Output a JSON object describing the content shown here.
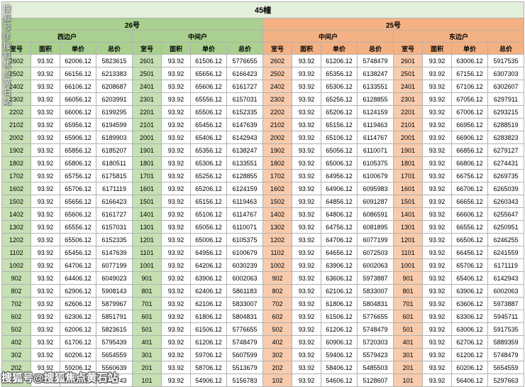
{
  "chart_data": {
    "type": "table",
    "title": "45幢",
    "groups": [
      {
        "building": "26号",
        "units": [
          "西边户",
          "中间户"
        ]
      },
      {
        "building": "25号",
        "units": [
          "中间户",
          "东边户"
        ]
      }
    ],
    "column_headers": [
      "室号",
      "面积",
      "单价",
      "总价"
    ],
    "rows": [
      [
        "2602",
        "93.92",
        "62006.12",
        "5823615",
        "2601",
        "93.92",
        "61506.12",
        "5776655",
        "2602",
        "93.92",
        "61206.12",
        "5748479",
        "2601",
        "93.92",
        "63006.12",
        "5917535"
      ],
      [
        "2502",
        "93.92",
        "66156.12",
        "6213383",
        "2501",
        "93.92",
        "65656.12",
        "6166423",
        "2502",
        "93.92",
        "65356.12",
        "6138247",
        "2501",
        "93.92",
        "67156.12",
        "6307303"
      ],
      [
        "2402",
        "93.92",
        "66106.12",
        "6208687",
        "2401",
        "93.92",
        "65606.12",
        "6161727",
        "2402",
        "93.92",
        "65306.12",
        "6133551",
        "2401",
        "93.92",
        "67106.12",
        "6302607"
      ],
      [
        "2302",
        "93.92",
        "66056.12",
        "6203991",
        "2301",
        "93.92",
        "65556.12",
        "6157031",
        "2302",
        "93.92",
        "65256.12",
        "6128855",
        "2301",
        "93.92",
        "67056.12",
        "6297911"
      ],
      [
        "2202",
        "93.92",
        "66006.12",
        "6199295",
        "2201",
        "93.92",
        "65506.12",
        "6152335",
        "2202",
        "93.92",
        "65206.12",
        "6124159",
        "2201",
        "93.92",
        "67006.12",
        "6293215"
      ],
      [
        "2102",
        "93.92",
        "65956.12",
        "6194599",
        "2101",
        "93.92",
        "65456.12",
        "6147639",
        "2102",
        "93.92",
        "65156.12",
        "6119463",
        "2101",
        "93.92",
        "66956.12",
        "6288519"
      ],
      [
        "2002",
        "93.92",
        "65906.12",
        "6189903",
        "2001",
        "93.92",
        "65406.12",
        "6142943",
        "2002",
        "93.92",
        "65106.12",
        "6114767",
        "2001",
        "93.92",
        "66906.12",
        "6283823"
      ],
      [
        "1902",
        "93.92",
        "65856.12",
        "6185207",
        "1901",
        "93.92",
        "65356.12",
        "6138247",
        "1902",
        "93.92",
        "65056.12",
        "6110071",
        "1901",
        "93.92",
        "66856.12",
        "6279127"
      ],
      [
        "1802",
        "93.92",
        "65806.12",
        "6180511",
        "1801",
        "93.92",
        "65306.12",
        "6133551",
        "1802",
        "93.92",
        "65006.12",
        "6105375",
        "1801",
        "93.92",
        "66806.12",
        "6274431"
      ],
      [
        "1702",
        "93.92",
        "65756.12",
        "6175815",
        "1701",
        "93.92",
        "65256.12",
        "6128855",
        "1702",
        "93.92",
        "64956.12",
        "6100679",
        "1701",
        "93.92",
        "66756.12",
        "6269735"
      ],
      [
        "1602",
        "93.92",
        "65706.12",
        "6171119",
        "1601",
        "93.92",
        "65206.12",
        "6124159",
        "1602",
        "93.92",
        "64906.12",
        "6095983",
        "1601",
        "93.92",
        "66706.12",
        "6265039"
      ],
      [
        "1502",
        "93.92",
        "65656.12",
        "6166423",
        "1501",
        "93.92",
        "65156.12",
        "6119463",
        "1502",
        "93.92",
        "64856.12",
        "6091287",
        "1501",
        "93.92",
        "66656.12",
        "6260343"
      ],
      [
        "1402",
        "93.92",
        "65606.12",
        "6161727",
        "1401",
        "93.92",
        "65106.12",
        "6114767",
        "1402",
        "93.92",
        "64806.12",
        "6086591",
        "1401",
        "93.92",
        "66606.12",
        "6255647"
      ],
      [
        "1302",
        "93.92",
        "65556.12",
        "6157031",
        "1301",
        "93.92",
        "65056.12",
        "6110071",
        "1302",
        "93.92",
        "64756.12",
        "6081895",
        "1301",
        "93.92",
        "66556.12",
        "6250951"
      ],
      [
        "1202",
        "93.92",
        "65506.12",
        "6152335",
        "1201",
        "93.92",
        "65006.12",
        "6105375",
        "1202",
        "93.92",
        "64706.12",
        "6077199",
        "1201",
        "93.92",
        "66506.12",
        "6246255"
      ],
      [
        "1102",
        "93.92",
        "65456.12",
        "6147639",
        "1101",
        "93.92",
        "64956.12",
        "6100679",
        "1102",
        "93.92",
        "64656.12",
        "6072503",
        "1101",
        "93.92",
        "66456.12",
        "6241559"
      ],
      [
        "1002",
        "93.92",
        "64706.12",
        "6077199",
        "1001",
        "93.92",
        "64206.12",
        "6030239",
        "1002",
        "93.92",
        "63906.12",
        "6002063",
        "1001",
        "93.92",
        "65706.12",
        "6171119"
      ],
      [
        "902",
        "93.92",
        "64406.12",
        "6049023",
        "901",
        "93.92",
        "63906.12",
        "6002063",
        "902",
        "93.92",
        "63606.12",
        "5973887",
        "901",
        "93.92",
        "65406.12",
        "6142943"
      ],
      [
        "802",
        "93.92",
        "62906.12",
        "5908143",
        "801",
        "93.92",
        "62406.12",
        "5861183",
        "802",
        "93.92",
        "62106.12",
        "5833007",
        "801",
        "93.92",
        "63906.12",
        "6002063"
      ],
      [
        "702",
        "93.92",
        "62606.12",
        "5879967",
        "701",
        "93.92",
        "62106.12",
        "5833007",
        "702",
        "93.92",
        "61806.12",
        "5804831",
        "701",
        "93.92",
        "63606.12",
        "5973887"
      ],
      [
        "602",
        "93.92",
        "62306.12",
        "5851791",
        "601",
        "93.92",
        "61806.12",
        "5804831",
        "602",
        "93.92",
        "61506.12",
        "5776655",
        "601",
        "93.92",
        "63306.12",
        "5945711"
      ],
      [
        "502",
        "93.92",
        "62006.12",
        "5823615",
        "501",
        "93.92",
        "61506.12",
        "5776655",
        "502",
        "93.92",
        "61206.12",
        "5748479",
        "501",
        "93.92",
        "63006.12",
        "5917535"
      ],
      [
        "402",
        "93.92",
        "61706.12",
        "5795439",
        "401",
        "93.92",
        "61206.12",
        "5748479",
        "402",
        "93.92",
        "60906.12",
        "5720303",
        "401",
        "93.92",
        "62706.12",
        "5889359"
      ],
      [
        "302",
        "93.92",
        "60206.12",
        "5654559",
        "301",
        "93.92",
        "59706.12",
        "5607599",
        "302",
        "93.92",
        "59406.12",
        "5579423",
        "301",
        "93.92",
        "61206.12",
        "5748479"
      ],
      [
        "202",
        "93.92",
        "59206.12",
        "5560639",
        "201",
        "93.92",
        "58706.12",
        "5513679",
        "202",
        "93.92",
        "58406.12",
        "5485503",
        "201",
        "93.92",
        "60206.12",
        "5654559"
      ],
      [
        "102",
        "93.92",
        "55406.12",
        "5203743",
        "101",
        "93.92",
        "54906.12",
        "5156783",
        "102",
        "93.92",
        "54606.12",
        "5128607",
        "101",
        "93.92",
        "56406.12",
        "5297663"
      ]
    ]
  },
  "watermark": {
    "vertical_text": "搜狐号@搜狐焦点黄石站",
    "bottom_text": "搜狐号@搜狐焦点黄石站"
  },
  "colors": {
    "title_bg": "#e2efda",
    "green_header": "#a9d08e",
    "green_room_cell": "#c6e0b4",
    "peach_header": "#f4b183",
    "peach_room_cell": "#f8cbad",
    "grid_line": "#b2b2b2"
  }
}
